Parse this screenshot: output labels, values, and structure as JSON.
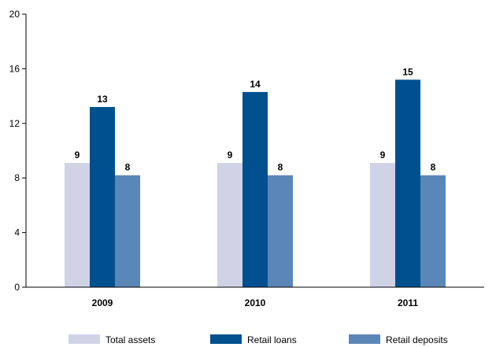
{
  "chart_data": {
    "type": "bar",
    "categories": [
      "2009",
      "2010",
      "2011"
    ],
    "series": [
      {
        "name": "Total assets",
        "values": [
          9,
          9,
          9
        ],
        "color": "#d0d3e6"
      },
      {
        "name": "Retail loans",
        "values": [
          13,
          14,
          15
        ],
        "color": "#00508f"
      },
      {
        "name": "Retail deposits",
        "values": [
          8,
          8,
          8
        ],
        "color": "#5b86b8"
      }
    ],
    "bar_values": [
      [
        9.1,
        9.1,
        9.1
      ],
      [
        13.2,
        14.3,
        15.2
      ],
      [
        8.2,
        8.2,
        8.2
      ]
    ],
    "ylim": [
      0,
      20
    ],
    "yticks": [
      "0",
      "4",
      "8",
      "12",
      "16",
      "20"
    ],
    "ytick_values": [
      0,
      4,
      8,
      12,
      16,
      20
    ],
    "title": "",
    "xlabel": "",
    "ylabel": "",
    "grid": false,
    "legend_position": "bottom"
  }
}
